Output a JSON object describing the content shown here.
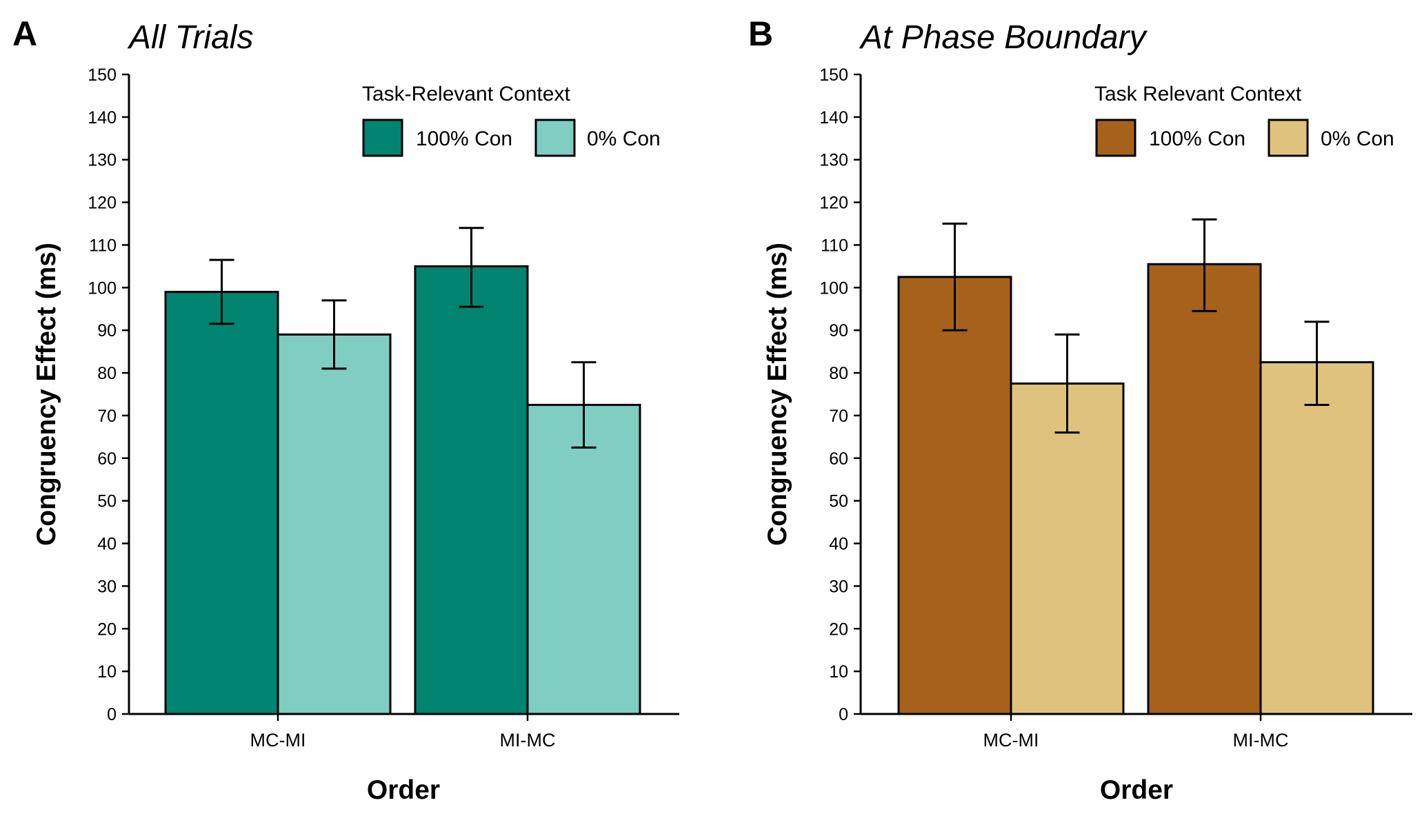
{
  "chart_data": [
    {
      "type": "bar",
      "panel_label": "A",
      "title": "All Trials",
      "xlabel": "Order",
      "ylabel": "Congruency Effect (ms)",
      "ylim": [
        0,
        150
      ],
      "yticks": [
        0,
        10,
        20,
        30,
        40,
        50,
        60,
        70,
        80,
        90,
        100,
        110,
        120,
        130,
        140,
        150
      ],
      "categories": [
        "MC-MI",
        "MI-MC"
      ],
      "legend_title": "Task-Relevant Context",
      "legend_position": "top-right",
      "grid": false,
      "series": [
        {
          "name": "100% Con",
          "color": "#018571",
          "values": [
            99,
            105
          ],
          "error_low": [
            91.5,
            95.5
          ],
          "error_high": [
            106.5,
            114
          ]
        },
        {
          "name": "0% Con",
          "color": "#80cdc1",
          "values": [
            89,
            72.5
          ],
          "error_low": [
            81,
            62.5
          ],
          "error_high": [
            97,
            82.5
          ]
        }
      ]
    },
    {
      "type": "bar",
      "panel_label": "B",
      "title": "At Phase Boundary",
      "xlabel": "Order",
      "ylabel": "Congruency Effect (ms)",
      "ylim": [
        0,
        150
      ],
      "yticks": [
        0,
        10,
        20,
        30,
        40,
        50,
        60,
        70,
        80,
        90,
        100,
        110,
        120,
        130,
        140,
        150
      ],
      "categories": [
        "MC-MI",
        "MI-MC"
      ],
      "legend_title": "Task Relevant Context",
      "legend_position": "top-right",
      "grid": false,
      "series": [
        {
          "name": "100% Con",
          "color": "#a6611a",
          "values": [
            102.5,
            105.5
          ],
          "error_low": [
            90,
            94.5
          ],
          "error_high": [
            115,
            116
          ]
        },
        {
          "name": "0% Con",
          "color": "#dfc27d",
          "values": [
            77.5,
            82.5
          ],
          "error_low": [
            66,
            72.5
          ],
          "error_high": [
            89,
            92
          ]
        }
      ]
    }
  ]
}
